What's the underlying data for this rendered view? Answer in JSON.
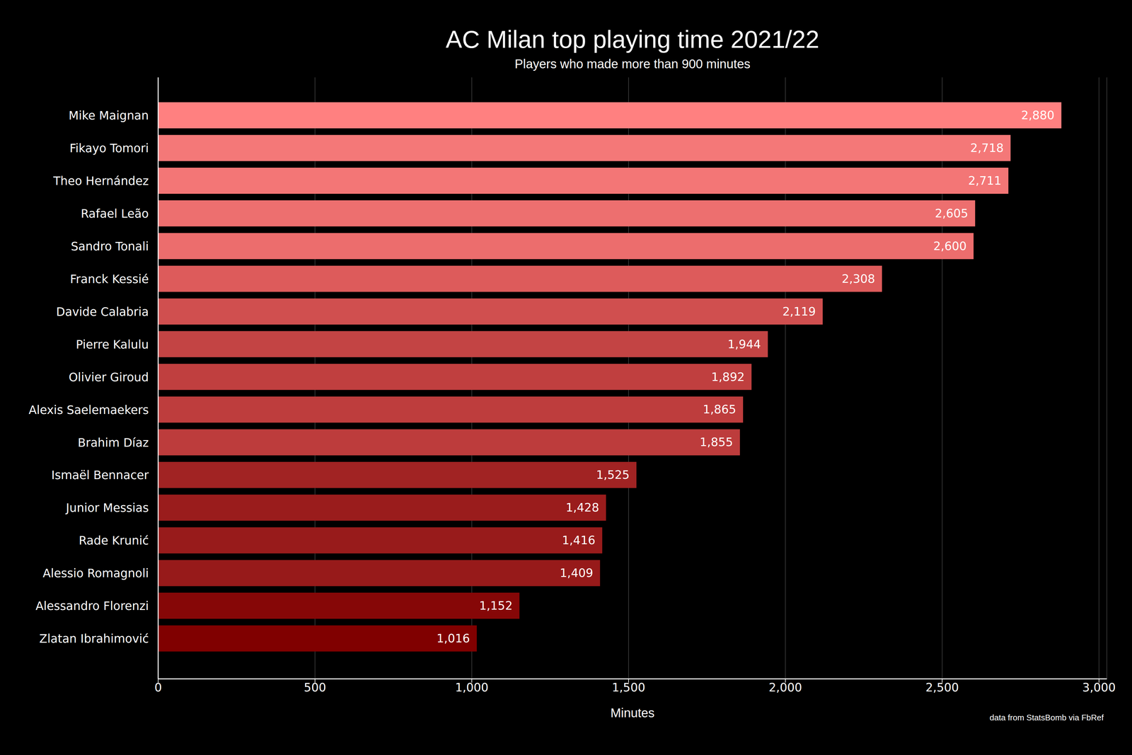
{
  "chart_data": {
    "type": "bar",
    "orientation": "horizontal",
    "title": "AC Milan top playing time 2021/22",
    "subtitle": "Players who made more than 900 minutes",
    "x_label": "Minutes",
    "annotation": "data from StatsBomb via FbRef",
    "categories": [
      "Mike Maignan",
      "Fikayo Tomori",
      "Theo Hernández",
      "Rafael Leão",
      "Sandro Tonali",
      "Franck Kessié",
      "Davide Calabria",
      "Pierre Kalulu",
      "Olivier Giroud",
      "Alexis Saelemaekers",
      "Brahim Díaz",
      "Ismaël Bennacer",
      "Junior Messias",
      "Rade Krunić",
      "Alessio Romagnoli",
      "Alessandro Florenzi",
      "Zlatan Ibrahimović"
    ],
    "values": [
      2880,
      2718,
      2711,
      2605,
      2600,
      2308,
      2119,
      1944,
      1892,
      1865,
      1855,
      1525,
      1428,
      1416,
      1409,
      1152,
      1016
    ],
    "value_labels": [
      "2,880",
      "2,718",
      "2,711",
      "2,605",
      "2,600",
      "2,308",
      "2,119",
      "1,944",
      "1,892",
      "1,865",
      "1,855",
      "1,525",
      "1,428",
      "1,416",
      "1,409",
      "1,152",
      "1,016"
    ],
    "colors": [
      "#ff8080",
      "#f47878",
      "#f37676",
      "#ed6f6f",
      "#ec6d6d",
      "#dd5b5b",
      "#d04f4f",
      "#c34444",
      "#c03f3f",
      "#be3d3d",
      "#bd3c3c",
      "#a12323",
      "#9a1c1c",
      "#981b1b",
      "#971a1a",
      "#860707",
      "#800000"
    ],
    "xlim": [
      0,
      3025
    ],
    "xticks": [
      0,
      500,
      {
        "value": 1000,
        "label": "1,000"
      },
      {
        "value": 1500,
        "label": "1,500"
      },
      {
        "value": 2000,
        "label": "2,000"
      },
      {
        "value": 2500,
        "label": "2,500"
      },
      {
        "value": 3000,
        "label": "3,000"
      }
    ],
    "grid": true,
    "data_labels": true
  }
}
